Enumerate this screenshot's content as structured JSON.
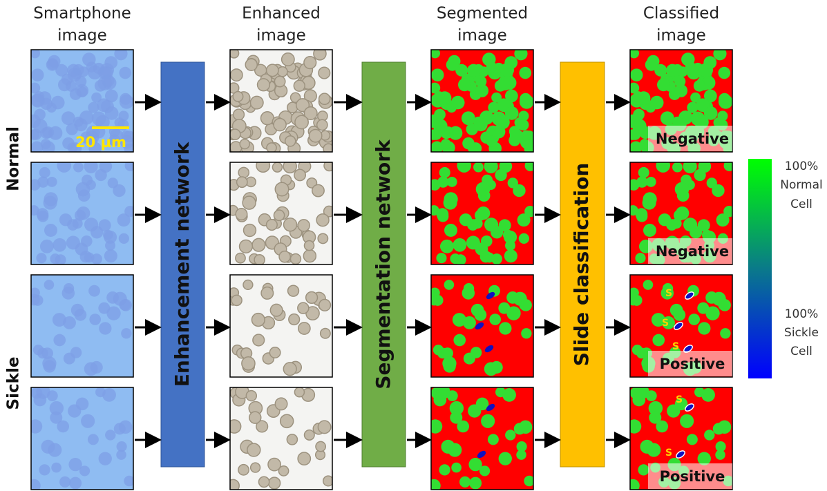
{
  "headers": [
    [
      "Smartphone",
      "image"
    ],
    [
      "Enhanced",
      "image"
    ],
    [
      "Segmented",
      "image"
    ],
    [
      "Classified",
      "image"
    ]
  ],
  "row_groups": [
    "Normal",
    "Sickle"
  ],
  "networks": [
    "Enhancement network",
    "Segmentation network",
    "Slide classification"
  ],
  "scale_bar": "20 µm",
  "results": [
    "Negative",
    "Negative",
    "Positive",
    "Positive"
  ],
  "sickle_labels": [
    "S",
    "S",
    "S",
    "S",
    "S"
  ],
  "colorbar": {
    "top": [
      "100%",
      "Normal",
      "Cell"
    ],
    "bottom": [
      "100%",
      "Sickle",
      "Cell"
    ]
  }
}
